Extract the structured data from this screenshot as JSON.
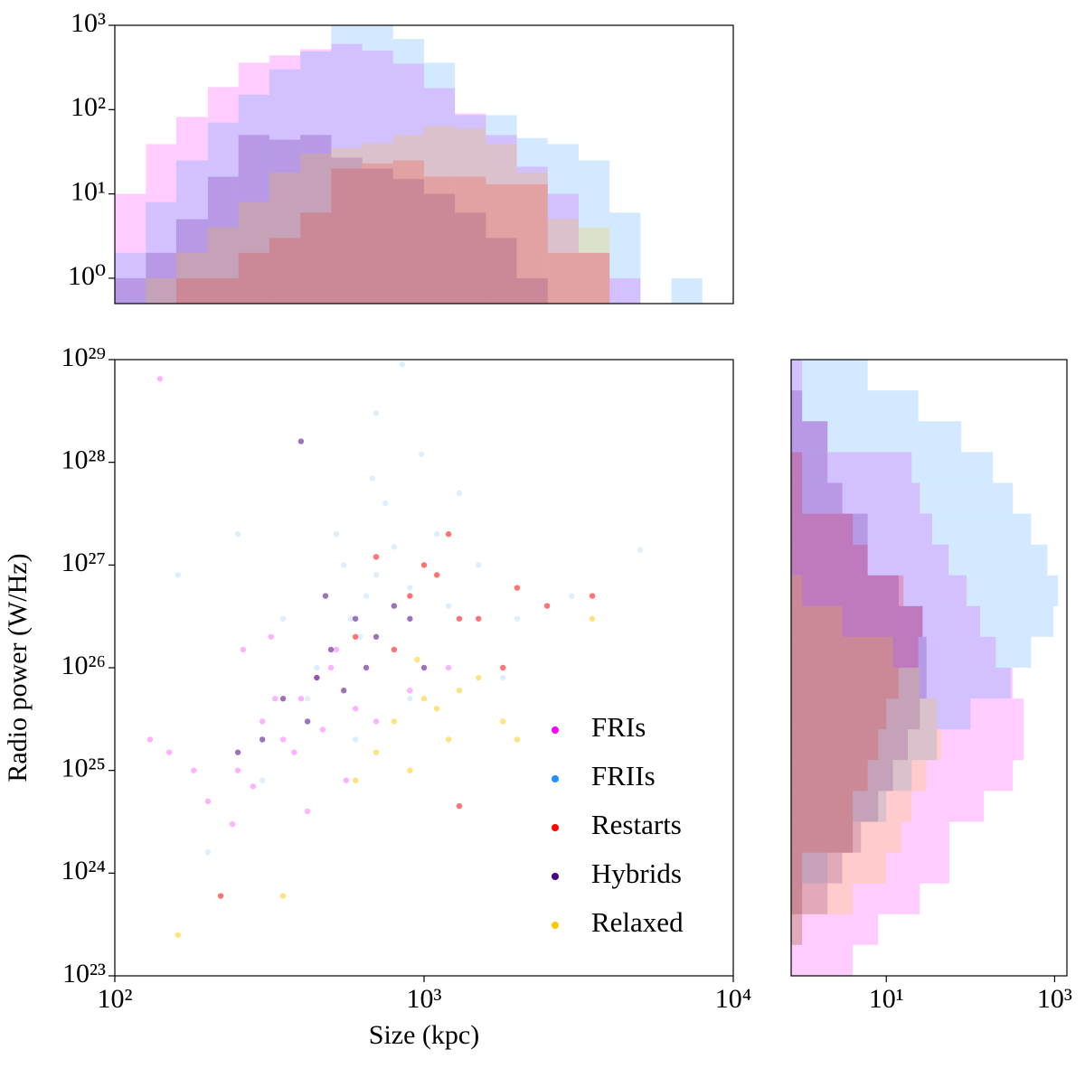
{
  "chart_data": [
    {
      "type": "histogram",
      "orientation": "vertical",
      "xscale": "log",
      "yscale": "log",
      "xlim": [
        100,
        10000
      ],
      "ylim": [
        0.5,
        1000
      ],
      "yticks": [
        {
          "value": 1,
          "label": "10⁰"
        },
        {
          "value": 10,
          "label": "10¹"
        },
        {
          "value": 100,
          "label": "10²"
        },
        {
          "value": 1000,
          "label": "10³"
        }
      ],
      "bins": [
        100,
        126,
        158,
        200,
        251,
        316,
        398,
        501,
        631,
        794,
        1000,
        1259,
        1585,
        1995,
        2512,
        3162,
        3981,
        5012,
        6310,
        7943
      ],
      "series": [
        {
          "name": "FRIs",
          "color": "#ff00ff",
          "values": [
            10,
            39,
            82,
            185,
            360,
            440,
            520,
            600,
            500,
            350,
            180,
            90,
            50,
            21,
            10,
            2,
            1,
            0,
            0
          ]
        },
        {
          "name": "FRIIs",
          "color": "#1e90ff",
          "values": [
            2,
            8,
            25,
            70,
            150,
            300,
            490,
            1200,
            1100,
            690,
            360,
            86,
            86,
            46,
            39,
            25,
            6,
            0,
            1
          ]
        },
        {
          "name": "Restarts",
          "color": "#ff0000",
          "values": [
            0,
            0,
            1,
            1,
            2,
            3,
            6,
            20,
            23,
            25,
            16,
            16,
            13,
            13,
            2,
            2,
            0,
            0,
            0
          ]
        },
        {
          "name": "Hybrids",
          "color": "#4b0082",
          "values": [
            1,
            2,
            5,
            16,
            50,
            44,
            50,
            27,
            20,
            15,
            10,
            6,
            3,
            1,
            0,
            0,
            0,
            0,
            0
          ]
        },
        {
          "name": "Relaxed",
          "color": "#ffc800",
          "values": [
            0,
            1,
            2,
            4,
            8,
            18,
            30,
            35,
            40,
            50,
            64,
            60,
            39,
            18,
            5,
            4,
            0,
            0,
            0
          ]
        }
      ]
    },
    {
      "type": "scatter",
      "xscale": "log",
      "yscale": "log",
      "x_label": "Size (kpc)",
      "y_label": "Radio power (W/Hz)",
      "xlim": [
        100,
        10000
      ],
      "ylim": [
        1e+23,
        1e+29
      ],
      "xticks": [
        {
          "value": 100,
          "label": "10²"
        },
        {
          "value": 1000,
          "label": "10³"
        },
        {
          "value": 10000,
          "label": "10⁴"
        }
      ],
      "yticks": [
        {
          "value": 1e+23,
          "label": "10²³"
        },
        {
          "value": 1e+24,
          "label": "10²⁴"
        },
        {
          "value": 1e+25,
          "label": "10²⁵"
        },
        {
          "value": 1e+26,
          "label": "10²⁶"
        },
        {
          "value": 1e+27,
          "label": "10²⁷"
        },
        {
          "value": 1e+28,
          "label": "10²⁸"
        },
        {
          "value": 1e+29,
          "label": "10²⁹"
        }
      ],
      "legend": "lower right",
      "series": [
        {
          "name": "FRIs",
          "color": "#ff00ff",
          "x": [
            300,
            400,
            350,
            500,
            250,
            450,
            600,
            200,
            380,
            320,
            700,
            280,
            150,
            520,
            420,
            900,
            240,
            180,
            330,
            470,
            130,
            260,
            560,
            1200,
            140
          ],
          "y": [
            3e+25,
            5e+25,
            2e+25,
            1e+26,
            1e+25,
            8e+25,
            4e+25,
            5e+24,
            1.5e+25,
            2e+26,
            3e+25,
            7e+24,
            1.5e+25,
            1.5e+26,
            4e+24,
            6e+25,
            3e+24,
            1e+25,
            5e+25,
            2.5e+25,
            2e+25,
            1.5e+26,
            8e+24,
            1e+26,
            6.5e+28
          ]
        },
        {
          "name": "FRIIs",
          "color": "#1e90ff",
          "x": [
            650,
            700,
            580,
            800,
            900,
            520,
            1200,
            450,
            1500,
            750,
            620,
            980,
            350,
            2000,
            680,
            550,
            1100,
            420,
            3000,
            250,
            160,
            700,
            850,
            1300,
            5000,
            1800,
            600,
            300,
            900,
            200
          ],
          "y": [
            5e+26,
            8e+26,
            3e+26,
            1.5e+27,
            6e+26,
            2e+27,
            4e+26,
            1e+26,
            1e+27,
            4e+27,
            2e+26,
            1.2e+28,
            3e+26,
            3e+26,
            7e+27,
            1e+27,
            2e+27,
            5e+25,
            5e+26,
            2e+27,
            8e+26,
            3e+28,
            9e+28,
            5e+27,
            1.4e+27,
            8e+25,
            2e+25,
            8e+24,
            5e+25,
            1.6e+24
          ]
        },
        {
          "name": "Restarts",
          "color": "#ff0000",
          "x": [
            1000,
            1200,
            900,
            1500,
            2000,
            800,
            1100,
            2500,
            700,
            1300,
            3500,
            600,
            1800,
            220,
            1300
          ],
          "y": [
            1e+27,
            2e+27,
            5e+26,
            3e+26,
            6e+26,
            1.5e+26,
            8e+26,
            4e+26,
            1.2e+27,
            3e+26,
            5e+26,
            2e+26,
            1e+26,
            6e+23,
            4.5e+24
          ]
        },
        {
          "name": "Hybrids",
          "color": "#4b0082",
          "x": [
            500,
            450,
            600,
            350,
            700,
            400,
            550,
            800,
            300,
            650,
            250,
            900,
            480,
            420,
            1000
          ],
          "y": [
            1.5e+26,
            8e+25,
            3e+26,
            5e+25,
            2e+26,
            1.6e+28,
            6e+25,
            4e+26,
            2e+25,
            1e+26,
            1.5e+25,
            3e+26,
            5e+26,
            3e+25,
            1e+26
          ]
        },
        {
          "name": "Relaxed",
          "color": "#ffc800",
          "x": [
            1000,
            1200,
            800,
            1500,
            900,
            1100,
            700,
            1800,
            1300,
            600,
            2000,
            950,
            160,
            350,
            3500
          ],
          "y": [
            5e+25,
            2e+25,
            3e+25,
            8e+25,
            1e+25,
            4e+25,
            1.5e+25,
            3e+25,
            6e+25,
            8e+24,
            2e+25,
            1.2e+26,
            2.5e+23,
            6e+23,
            3e+26
          ]
        }
      ]
    },
    {
      "type": "histogram",
      "orientation": "horizontal",
      "xscale": "log",
      "yscale": "log",
      "xlim": [
        0.74,
        1400
      ],
      "ylim": [
        1e+23,
        1e+29
      ],
      "xticks": [
        {
          "value": 10,
          "label": "10¹"
        },
        {
          "value": 1000,
          "label": "10³"
        }
      ],
      "bins": [
        1e+23,
        2e+23,
        3.98e+23,
        7.94e+23,
        1.58e+24,
        3.16e+24,
        6.31e+24,
        1.26e+25,
        2.51e+25,
        5.01e+25,
        1e+26,
        2e+26,
        3.98e+26,
        7.94e+26,
        1.58e+27,
        3.16e+27,
        6.31e+27,
        1.26e+28,
        2.51e+28,
        5.01e+28,
        1e+29
      ],
      "series": [
        {
          "name": "FRIs",
          "color": "#ff00ff",
          "values": [
            4,
            8,
            25,
            56,
            56,
            145,
            320,
            430,
            430,
            320,
            200,
            130,
            90,
            55,
            35,
            25,
            20,
            2,
            1,
            1
          ]
        },
        {
          "name": "FRIIs",
          "color": "#1e90ff",
          "values": [
            0,
            0,
            1,
            2,
            4,
            10,
            20,
            40,
            100,
            300,
            525,
            970,
            1100,
            820,
            525,
            320,
            185,
            78,
            24,
            6
          ]
        },
        {
          "name": "Restarts",
          "color": "#ff0000",
          "values": [
            0,
            0,
            1,
            1,
            4,
            4,
            6,
            8,
            10,
            14,
            24,
            27,
            16,
            6,
            4,
            1,
            1,
            0,
            0,
            0
          ]
        },
        {
          "name": "Hybrids",
          "color": "#4b0082",
          "values": [
            0,
            1,
            2,
            3,
            5,
            8,
            12,
            18,
            25,
            30,
            30,
            27,
            14,
            6,
            6,
            3,
            2,
            2,
            1,
            0
          ]
        },
        {
          "name": "Relaxed",
          "color": "#ffc800",
          "values": [
            0,
            1,
            4,
            10,
            15,
            20,
            30,
            45,
            40,
            25,
            12,
            3,
            1,
            0,
            0,
            0,
            0,
            0,
            0,
            0
          ]
        }
      ]
    }
  ]
}
